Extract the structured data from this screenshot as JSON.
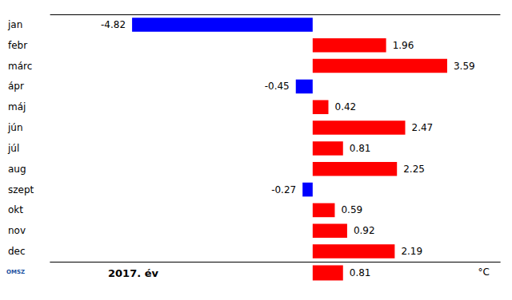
{
  "chart_data": [
    {
      "type": "bar",
      "orientation": "horizontal",
      "categories": [
        "jan",
        "febr",
        "márc",
        "ápr",
        "máj",
        "jún",
        "júl",
        "aug",
        "szept",
        "okt",
        "nov",
        "dec"
      ],
      "values": [
        -4.82,
        1.96,
        3.59,
        -0.45,
        0.42,
        2.47,
        0.81,
        2.25,
        -0.27,
        0.59,
        0.92,
        2.19
      ],
      "colors": [
        "#0000ff",
        "#ff0000",
        "#ff0000",
        "#0000ff",
        "#ff0000",
        "#ff0000",
        "#ff0000",
        "#ff0000",
        "#0000ff",
        "#ff0000",
        "#ff0000",
        "#ff0000"
      ],
      "xlim": [
        -7,
        5
      ],
      "data_labels": true,
      "tick_labels": "y"
    },
    {
      "type": "bar",
      "orientation": "horizontal",
      "categories": [
        "2017. év"
      ],
      "values": [
        0.81
      ],
      "colors": [
        "#ff0000"
      ],
      "xlim": [
        -7,
        5
      ],
      "xlabel": "°C",
      "annotations": [
        "OMSZ"
      ],
      "data_labels": true,
      "tick_labels": "y"
    }
  ]
}
